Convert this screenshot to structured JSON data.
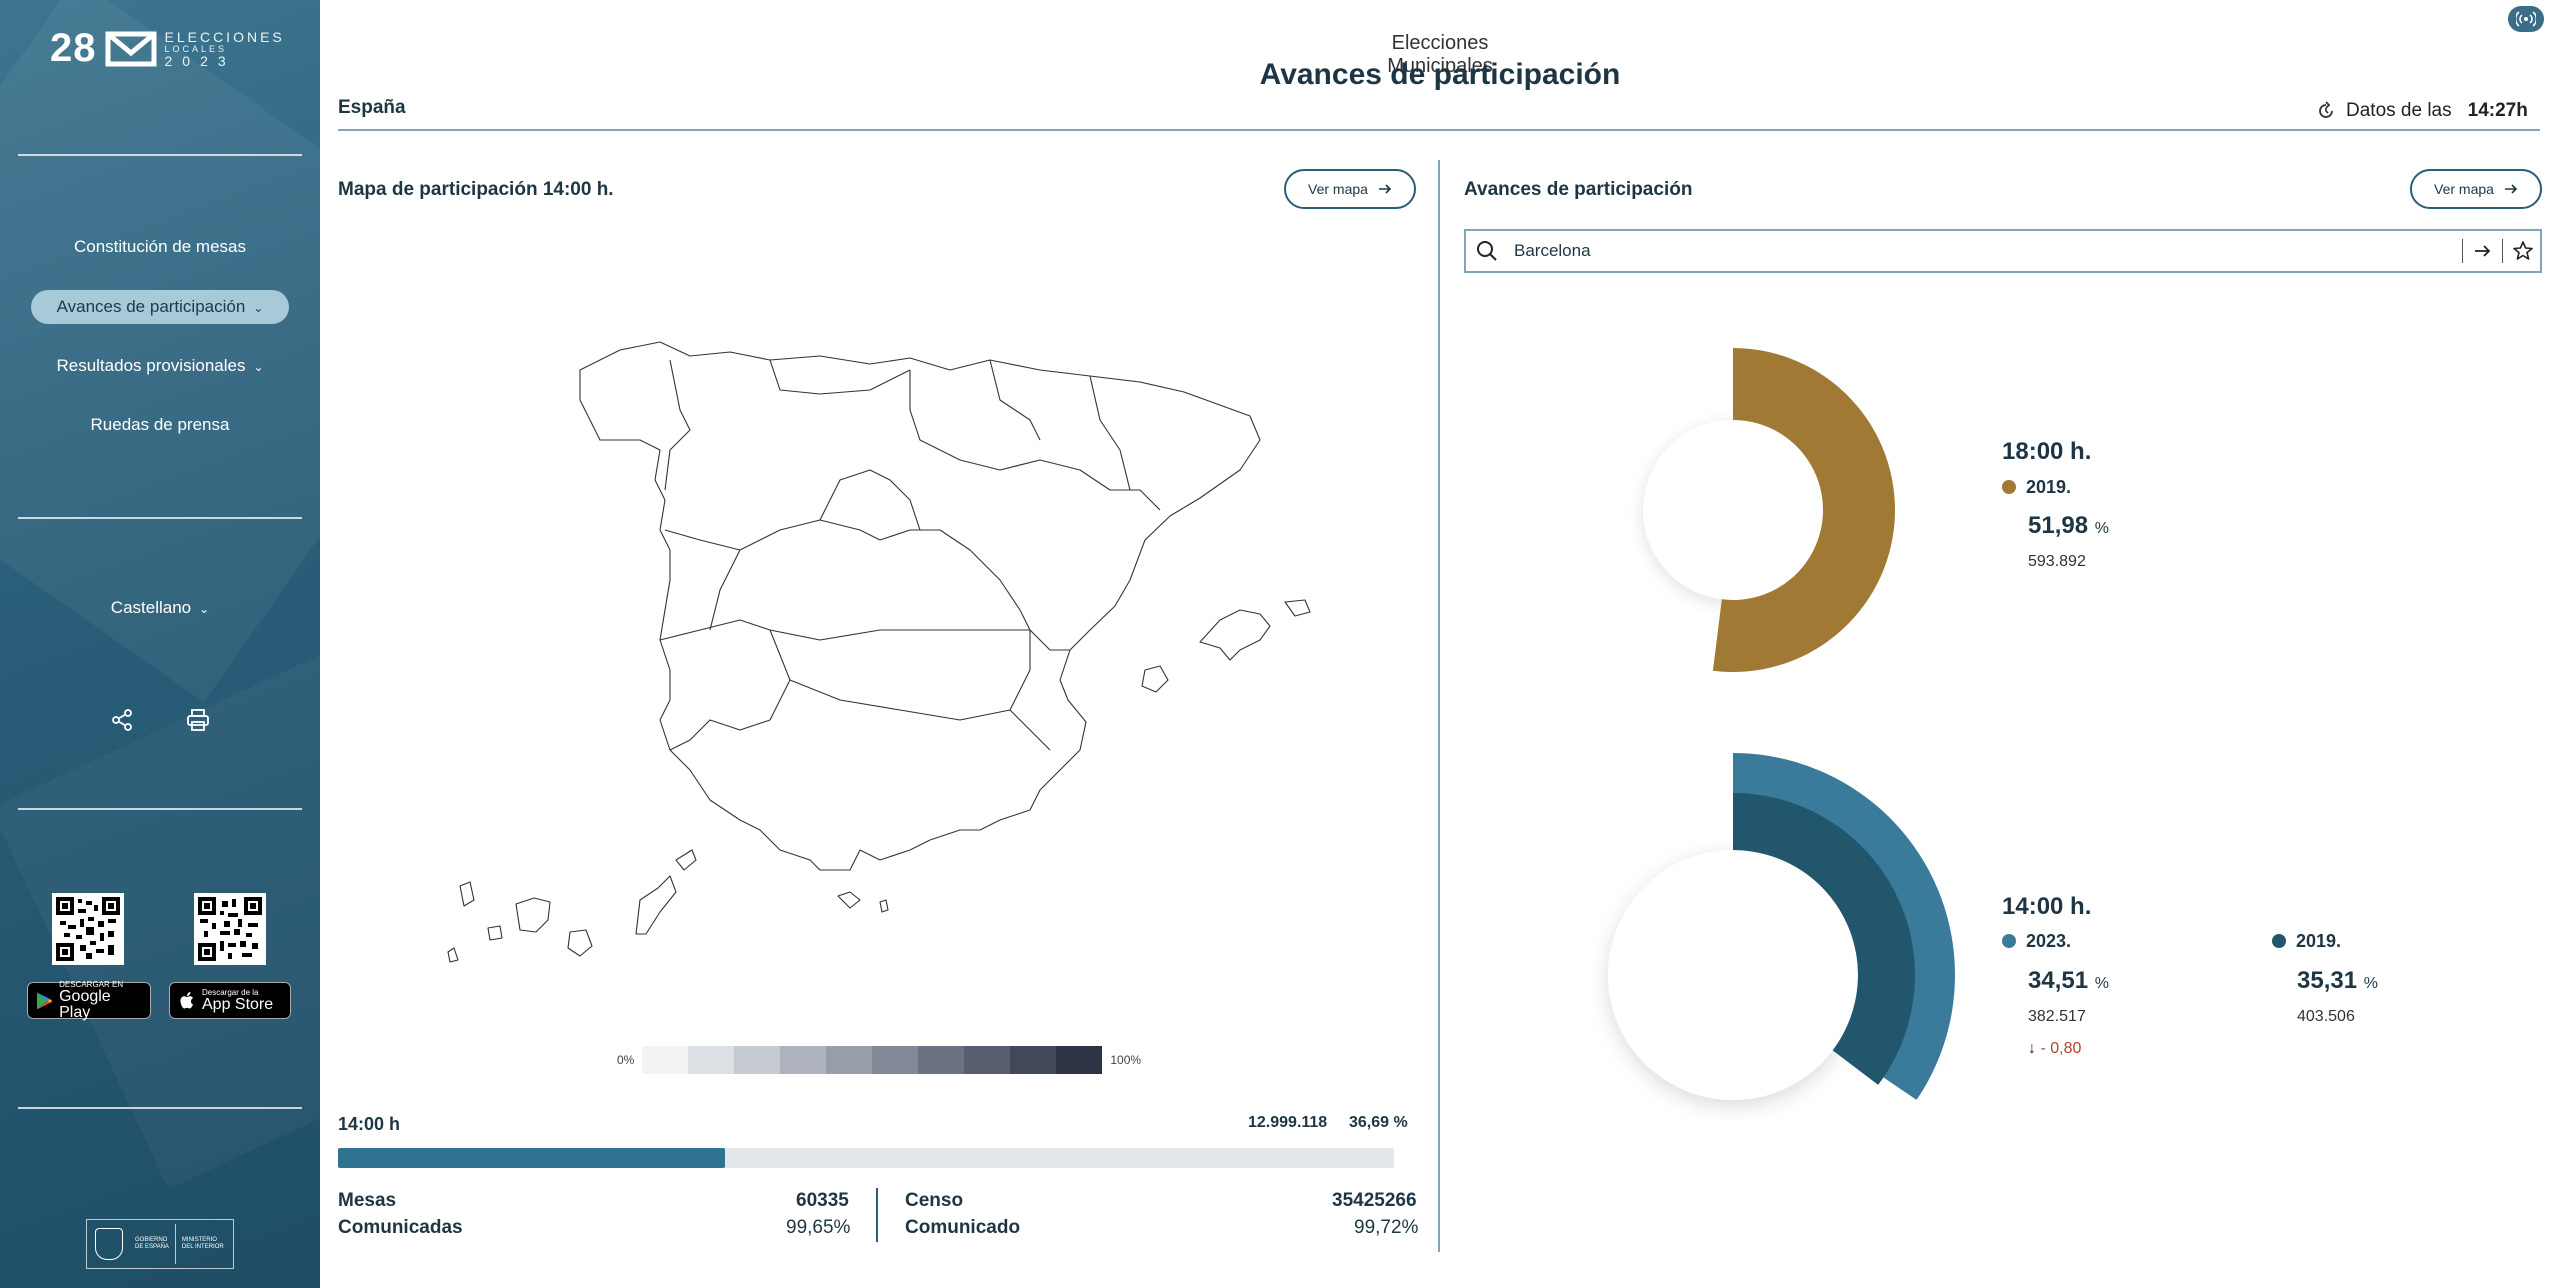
{
  "sidebar": {
    "logo": {
      "number": "28",
      "text": "ELECCIONES",
      "text_line2": "LOCALES",
      "year": "2023"
    },
    "nav": [
      {
        "label": "Constitución de mesas"
      },
      {
        "label": "Avances de participación"
      },
      {
        "label": "Resultados provisionales"
      },
      {
        "label": "Ruedas de prensa"
      }
    ],
    "language": "Castellano",
    "stores": [
      {
        "small": "DESCARGAR EN",
        "big": "Google Play"
      },
      {
        "small": "Descargar de la",
        "big": "App Store"
      }
    ],
    "gov": {
      "line1": "GOBIERNO",
      "line2": "DE ESPAÑA",
      "line3": "MINISTERIO",
      "line4": "DEL INTERIOR"
    }
  },
  "header": {
    "subtitle": "Elecciones Municipales",
    "title": "Avances de participación",
    "region": "España",
    "datos_label": "Datos de las",
    "datos_time": "14:27h"
  },
  "left": {
    "title": "Mapa de participación 14:00 h.",
    "ver_mapa": "Ver mapa",
    "legend_min": "0%",
    "legend_max": "100%",
    "legend_colors": [
      "#f2f3f5",
      "#dcdfe3",
      "#c6cad1",
      "#aeb3bd",
      "#979ea9",
      "#818896",
      "#6b7383",
      "#565e6f",
      "#40485a",
      "#2b3345"
    ],
    "progress": {
      "label": "14:00 h",
      "total": "12.999.118",
      "percent": "36,69 %",
      "fill": 0.3669
    },
    "mesas": {
      "label": "Mesas",
      "value": "60335",
      "sub_label": "Comunicadas",
      "sub_value": "99,65%"
    },
    "censo": {
      "label": "Censo",
      "value": "35425266",
      "sub_label": "Comunicado",
      "sub_value": "99,72%"
    }
  },
  "right": {
    "title": "Avances de participación",
    "ver_mapa": "Ver mapa",
    "search_value": "Barcelona",
    "block1": {
      "time": "18:00 h.",
      "series": [
        {
          "year": "2019.",
          "percent": "51,98",
          "unit": "%",
          "count": "593.892",
          "color": "#a07a35",
          "fraction": 0.5198
        }
      ]
    },
    "block2": {
      "time": "14:00 h.",
      "series": [
        {
          "year": "2023.",
          "percent": "34,51",
          "unit": "%",
          "count": "382.517",
          "color": "#3a7a9a",
          "fraction": 0.3451,
          "delta": "- 0,80",
          "delta_color": "#b0452a"
        },
        {
          "year": "2019.",
          "percent": "35,31",
          "unit": "%",
          "count": "403.506",
          "color": "#22566c",
          "fraction": 0.3531
        }
      ]
    }
  }
}
